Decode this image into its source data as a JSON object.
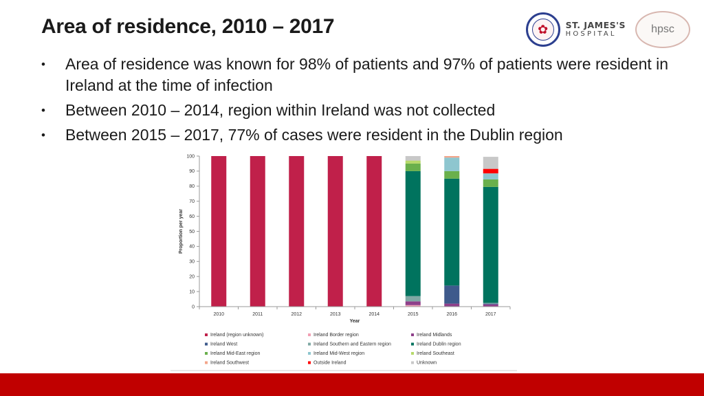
{
  "slide": {
    "title": "Area of residence, 2010 – 2017",
    "bullets": [
      "Area of residence was known for 98% of patients and 97% of patients were resident in Ireland at the time of infection",
      "Between 2010 – 2014, region within Ireland was not collected",
      "Between 2015 – 2017, 77% of cases were resident in the Dublin region"
    ]
  },
  "logos": {
    "st_james_line1": "ST. JAMES'S",
    "st_james_line2": "HOSPITAL",
    "hpsc": "hpsc",
    "seal_icon": "hospital-seal-icon"
  },
  "colors": {
    "footer_band": "#c00000"
  },
  "chart_data": {
    "type": "bar",
    "stacked": true,
    "title": "",
    "xlabel": "Year",
    "ylabel": "Proportion per year",
    "ylim": [
      0,
      100
    ],
    "yticks": [
      0,
      10,
      20,
      30,
      40,
      50,
      60,
      70,
      80,
      90,
      100
    ],
    "grid": false,
    "legend_position": "bottom",
    "categories": [
      "2010",
      "2011",
      "2012",
      "2013",
      "2014",
      "2015",
      "2016",
      "2017"
    ],
    "series": [
      {
        "name": "Ireland (region unknown)",
        "color": "#c0204a",
        "values": [
          100,
          100,
          100,
          100,
          100,
          0,
          0,
          0
        ]
      },
      {
        "name": "Ireland Border region",
        "color": "#f2a0b4",
        "values": [
          0,
          0,
          0,
          0,
          0,
          1,
          0,
          0
        ]
      },
      {
        "name": "Ireland Midlands",
        "color": "#8e3f8a",
        "values": [
          0,
          0,
          0,
          0,
          0,
          2.5,
          2,
          1.5
        ]
      },
      {
        "name": "Ireland West",
        "color": "#3e5a8c",
        "values": [
          0,
          0,
          0,
          0,
          0,
          0,
          12,
          0.5
        ]
      },
      {
        "name": "Ireland Southern and Eastern region",
        "color": "#7fa8a4",
        "values": [
          0,
          0,
          0,
          0,
          0,
          3.5,
          0,
          0.5
        ]
      },
      {
        "name": "Ireland Dublin region",
        "color": "#00735e",
        "values": [
          0,
          0,
          0,
          0,
          0,
          83,
          71,
          77
        ]
      },
      {
        "name": "Ireland Mid-East region",
        "color": "#6ab04c",
        "values": [
          0,
          0,
          0,
          0,
          0,
          5,
          5,
          5
        ]
      },
      {
        "name": "Ireland Mid-West region",
        "color": "#8ec6cf",
        "values": [
          0,
          0,
          0,
          0,
          0,
          0,
          9,
          4
        ]
      },
      {
        "name": "Ireland Southeast",
        "color": "#b6d96a",
        "values": [
          0,
          0,
          0,
          0,
          0,
          2,
          0,
          0
        ]
      },
      {
        "name": "Ireland Southwest",
        "color": "#f3a58a",
        "values": [
          0,
          0,
          0,
          0,
          0,
          0,
          1,
          0
        ]
      },
      {
        "name": "Outside Ireland",
        "color": "#ff0000",
        "values": [
          0,
          0,
          0,
          0,
          0,
          0,
          0,
          3
        ]
      },
      {
        "name": "Unknown",
        "color": "#c8c8c8",
        "values": [
          0,
          0,
          0,
          0,
          0,
          3,
          0,
          8
        ]
      }
    ]
  }
}
